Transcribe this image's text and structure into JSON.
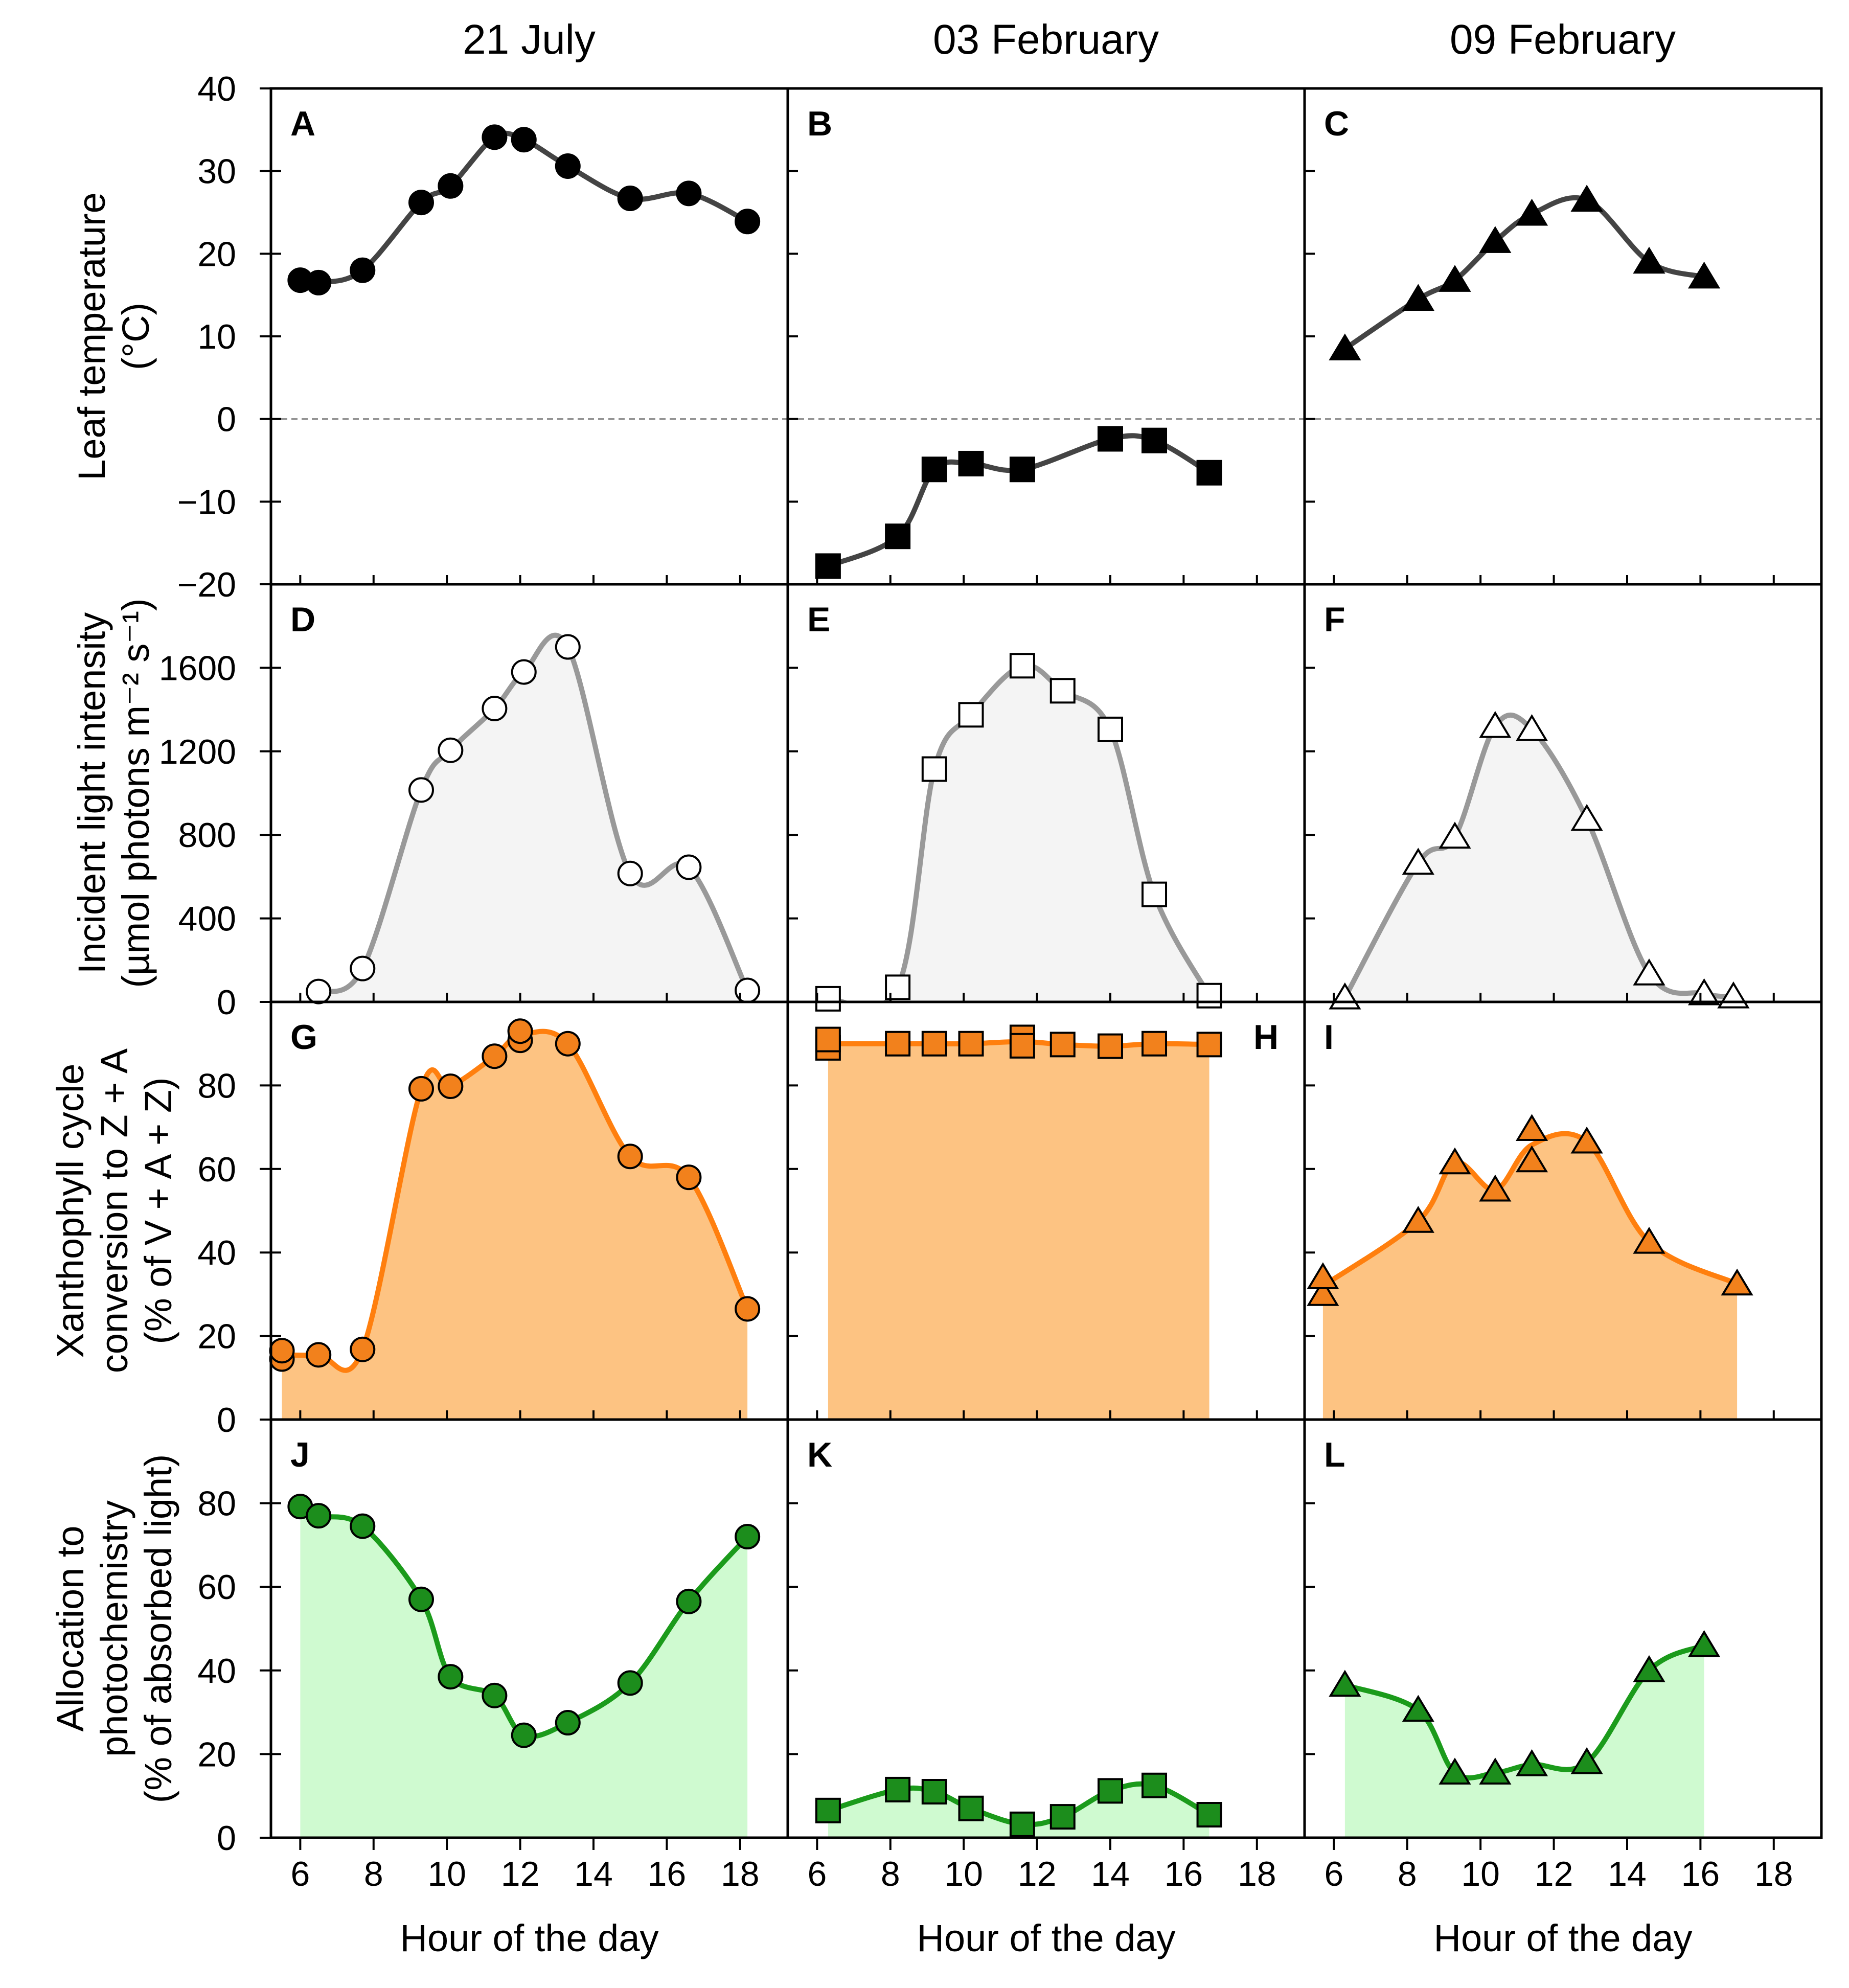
{
  "chart_data": {
    "type": "line",
    "layout": "3 columns x 4 rows of panels sharing axes",
    "columns": [
      "21 July",
      "03 February",
      "09 February"
    ],
    "x_axis": {
      "label": "Hour of the day",
      "range": [
        5.2,
        19.3
      ],
      "ticks": [
        "6",
        "8",
        "10",
        "12",
        "14",
        "16",
        "18"
      ],
      "tick_values": [
        6,
        8,
        10,
        12,
        14,
        16,
        18
      ]
    },
    "rows": [
      {
        "key": "temp",
        "ylabel": [
          "Leaf temperature",
          "(°C)"
        ],
        "ylim": [
          -20,
          40
        ],
        "ticks": [
          "−20",
          "−10",
          "0",
          "10",
          "20",
          "30",
          "40"
        ],
        "tick_values": [
          -20,
          -10,
          0,
          10,
          20,
          30,
          40
        ],
        "zero_line": true,
        "fill": false,
        "line_color": "#444444",
        "fill_color": "none",
        "marker_fill": "#000000",
        "panels": [
          {
            "letter": "A",
            "marker": "circle",
            "x": [
              6.0,
              6.5,
              7.7,
              9.3,
              10.1,
              11.3,
              12.1,
              13.3,
              15.0,
              16.6,
              18.2
            ],
            "y": [
              16.8,
              16.5,
              18.0,
              26.2,
              28.2,
              34.1,
              33.8,
              30.6,
              26.7,
              27.3,
              23.9
            ]
          },
          {
            "letter": "B",
            "marker": "square",
            "x": [
              6.3,
              8.2,
              9.2,
              10.2,
              11.6,
              14.0,
              15.2,
              16.7
            ],
            "y": [
              -17.8,
              -14.2,
              -6.1,
              -5.4,
              -6.1,
              -2.4,
              -2.6,
              -6.5
            ]
          },
          {
            "letter": "C",
            "marker": "triangle",
            "x": [
              6.3,
              8.3,
              9.3,
              10.4,
              11.4,
              12.9,
              14.6,
              16.1
            ],
            "y": [
              8.5,
              14.5,
              16.8,
              21.5,
              24.8,
              26.5,
              19.0,
              17.2
            ]
          }
        ]
      },
      {
        "key": "light",
        "ylabel": [
          "Incident light intensity",
          "(µmol photons m⁻² s⁻¹)"
        ],
        "ylim": [
          0,
          2000
        ],
        "ticks": [
          "0",
          "400",
          "800",
          "1200",
          "1600"
        ],
        "tick_values": [
          0,
          400,
          800,
          1200,
          1600
        ],
        "fill": true,
        "line_color": "#999999",
        "fill_color": "#f4f4f4",
        "marker_fill": "#ffffff",
        "panels": [
          {
            "letter": "D",
            "marker": "circle",
            "x": [
              6.5,
              7.7,
              9.3,
              10.1,
              11.3,
              12.1,
              13.3,
              15.0,
              16.6,
              18.2
            ],
            "y": [
              50,
              160,
              1015,
              1205,
              1405,
              1580,
              1700,
              615,
              645,
              55
            ]
          },
          {
            "letter": "E",
            "marker": "square",
            "x": [
              6.3,
              8.2,
              9.2,
              10.2,
              11.6,
              12.7,
              14.0,
              15.2,
              16.7
            ],
            "y": [
              15,
              70,
              1115,
              1375,
              1610,
              1490,
              1305,
              515,
              30
            ]
          },
          {
            "letter": "F",
            "marker": "triangle",
            "x": [
              6.3,
              8.3,
              9.3,
              10.4,
              11.4,
              12.9,
              14.6,
              16.1,
              16.9
            ],
            "y": [
              20,
              665,
              790,
              1320,
              1305,
              875,
              135,
              40,
              25
            ]
          }
        ]
      },
      {
        "key": "xanth",
        "ylabel": [
          "Xanthophyll cycle",
          "conversion to Z + A",
          "(% of V + A + Z)"
        ],
        "ylim": [
          0,
          100
        ],
        "ticks": [
          "0",
          "20",
          "40",
          "60",
          "80"
        ],
        "tick_values": [
          0,
          20,
          40,
          60,
          80
        ],
        "fill": true,
        "line_color": "#ff7f0e",
        "fill_color": "#fdc382",
        "marker_fill": "#f2811c",
        "panels": [
          {
            "letter": "G",
            "marker": "circle",
            "x": [
              5.5,
              5.5,
              6.5,
              7.7,
              9.3,
              10.1,
              11.3,
              12.0,
              12.0,
              13.3,
              15.0,
              16.6,
              18.2
            ],
            "y": [
              14.5,
              16.5,
              15.5,
              16.8,
              79.2,
              79.8,
              87.0,
              90.8,
              93.0,
              90.0,
              63.0,
              58.0,
              26.5
            ]
          },
          {
            "letter": "H",
            "marker": "square",
            "x": [
              6.3,
              6.3,
              8.2,
              9.2,
              10.2,
              11.6,
              11.6,
              12.7,
              14.0,
              15.2,
              16.7
            ],
            "y": [
              89.0,
              91.0,
              90.0,
              90.0,
              90.0,
              91.5,
              89.5,
              89.8,
              89.4,
              90.0,
              89.8
            ]
          },
          {
            "letter": "I",
            "marker": "triangle",
            "x": [
              5.7,
              5.7,
              8.3,
              9.3,
              10.4,
              11.4,
              11.4,
              12.9,
              14.6,
              17.0
            ],
            "y": [
              30.0,
              34.0,
              47.5,
              61.5,
              55.0,
              69.5,
              62.0,
              66.5,
              42.5,
              32.5
            ]
          }
        ]
      },
      {
        "key": "alloc",
        "ylabel": [
          "Allocation to",
          "photochemistry",
          "(% of absorbed light)"
        ],
        "ylim": [
          0,
          100
        ],
        "ticks": [
          "0",
          "20",
          "40",
          "60",
          "80"
        ],
        "tick_values": [
          0,
          20,
          40,
          60,
          80
        ],
        "fill": true,
        "line_color": "#1b9b1b",
        "fill_color": "#cffad0",
        "marker_fill": "#1c8d1c",
        "panels": [
          {
            "letter": "J",
            "marker": "circle",
            "x": [
              6.0,
              6.5,
              7.7,
              9.3,
              10.1,
              11.3,
              12.1,
              13.3,
              15.0,
              16.6,
              18.2
            ],
            "y": [
              79.2,
              77.0,
              74.5,
              57.0,
              38.5,
              34.0,
              24.5,
              27.5,
              37.0,
              56.5,
              72.0
            ]
          },
          {
            "letter": "K",
            "marker": "square",
            "x": [
              6.3,
              8.2,
              9.2,
              10.2,
              11.6,
              12.7,
              14.0,
              15.2,
              16.7
            ],
            "y": [
              6.5,
              11.5,
              11.0,
              7.0,
              3.2,
              5.0,
              11.2,
              12.5,
              5.5
            ]
          },
          {
            "letter": "L",
            "marker": "triangle",
            "x": [
              6.3,
              8.3,
              9.3,
              10.4,
              11.4,
              12.9,
              14.6,
              16.1
            ],
            "y": [
              36.5,
              30.5,
              15.5,
              15.5,
              17.5,
              18.0,
              40.0,
              46.0
            ]
          }
        ]
      }
    ]
  }
}
